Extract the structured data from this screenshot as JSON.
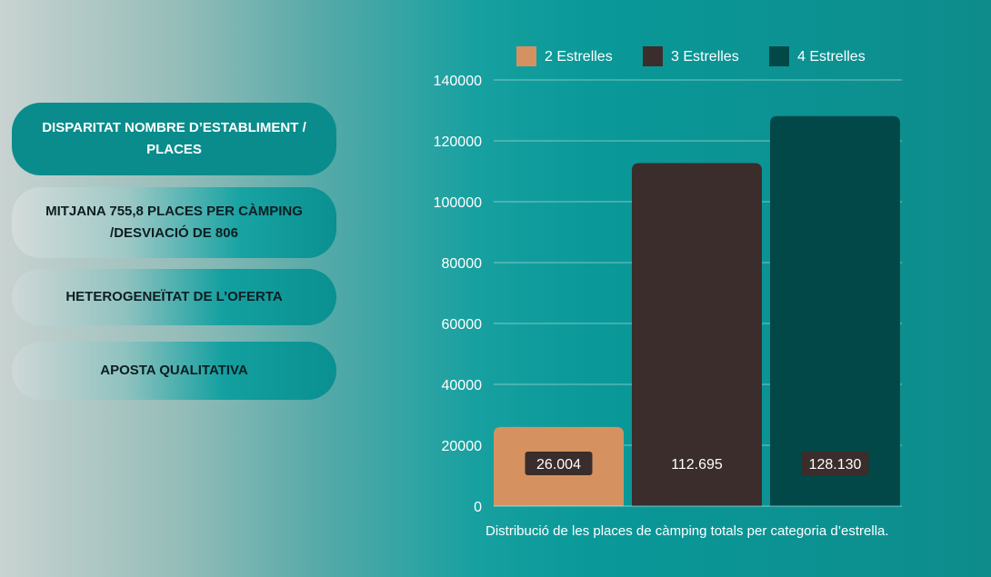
{
  "panel": {
    "items": [
      {
        "label": "DISPARITAT NOMBRE D’ESTABLIMENT / PLACES"
      },
      {
        "label": "MITJANA 755,8 PLACES PER CÀMPING /DESVIACIÓ DE 806"
      },
      {
        "label": "HETEROGENEÏTAT DE L’OFERTA"
      },
      {
        "label": "APOSTA QUALITATIVA"
      }
    ]
  },
  "chart_data": {
    "type": "bar",
    "categories": [
      "2 Estrelles",
      "3 Estrelles",
      "4 Estrelles"
    ],
    "values": [
      26004,
      112695,
      128130
    ],
    "value_labels": [
      "26.004",
      "112.695",
      "128.130"
    ],
    "ylim": [
      0,
      140000
    ],
    "yticks": [
      "0",
      "20000",
      "40000",
      "60000",
      "80000",
      "100000",
      "120000",
      "140000"
    ],
    "ytick_values": [
      0,
      20000,
      40000,
      60000,
      80000,
      100000,
      120000,
      140000
    ],
    "colors": [
      "#d59260",
      "#3a2d2b",
      "#034848"
    ],
    "label_box_colors": [
      "#3a2d2b",
      "#3a2d2b",
      "#3a2d2b"
    ],
    "grid": true,
    "legend": "top",
    "caption": "Distribució de les places de càmping totals per categoria d’estrella."
  }
}
